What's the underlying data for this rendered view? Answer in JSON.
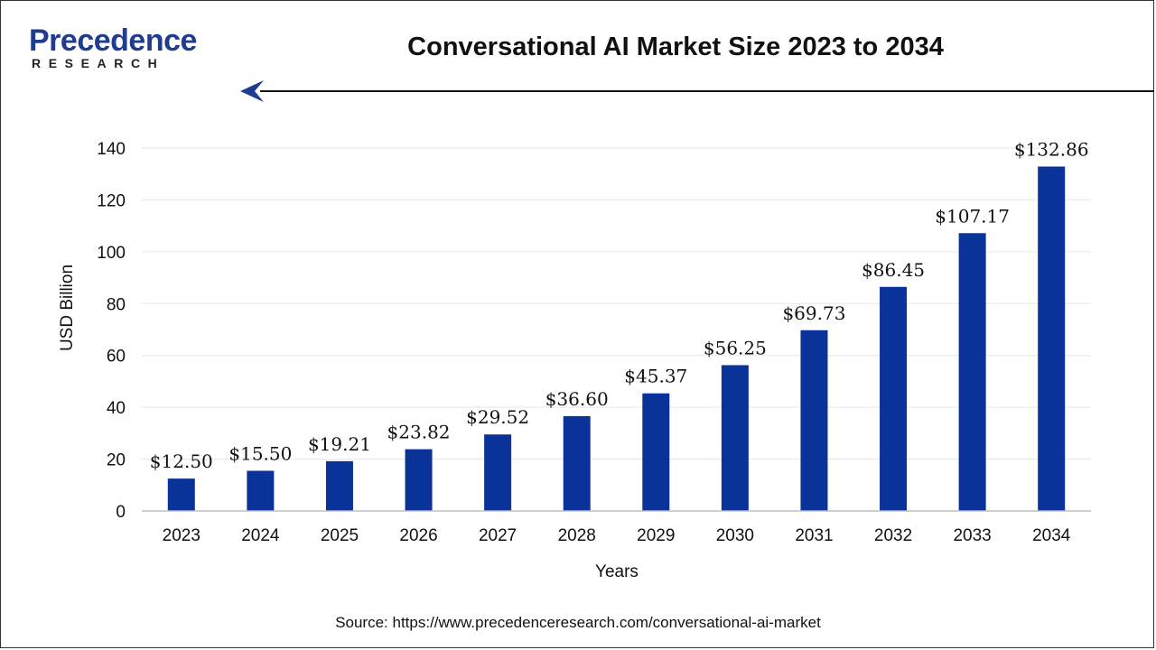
{
  "brand": {
    "name": "Precedence",
    "sub": "RESEARCH"
  },
  "source": "Source: https://www.precedenceresearch.com/conversational-ai-market",
  "colors": {
    "bar": "#0a3399",
    "brand": "#1f3c8f",
    "grid": "#e6e6e6"
  },
  "chart_data": {
    "type": "bar",
    "title": "Conversational AI Market Size 2023 to 2034",
    "xlabel": "Years",
    "ylabel": "USD Billion",
    "ylim": [
      0,
      140
    ],
    "yticks": [
      0,
      20,
      40,
      60,
      80,
      100,
      120,
      140
    ],
    "grid": true,
    "categories": [
      "2023",
      "2024",
      "2025",
      "2026",
      "2027",
      "2028",
      "2029",
      "2030",
      "2031",
      "2032",
      "2033",
      "2034"
    ],
    "values": [
      12.5,
      15.5,
      19.21,
      23.82,
      29.52,
      36.6,
      45.37,
      56.25,
      69.73,
      86.45,
      107.17,
      132.86
    ],
    "data_labels": [
      "$12.50",
      "$15.50",
      "$19.21",
      "$23.82",
      "$29.52",
      "$36.60",
      "$45.37",
      "$56.25",
      "$69.73",
      "$86.45",
      "$107.17",
      "$132.86"
    ]
  }
}
